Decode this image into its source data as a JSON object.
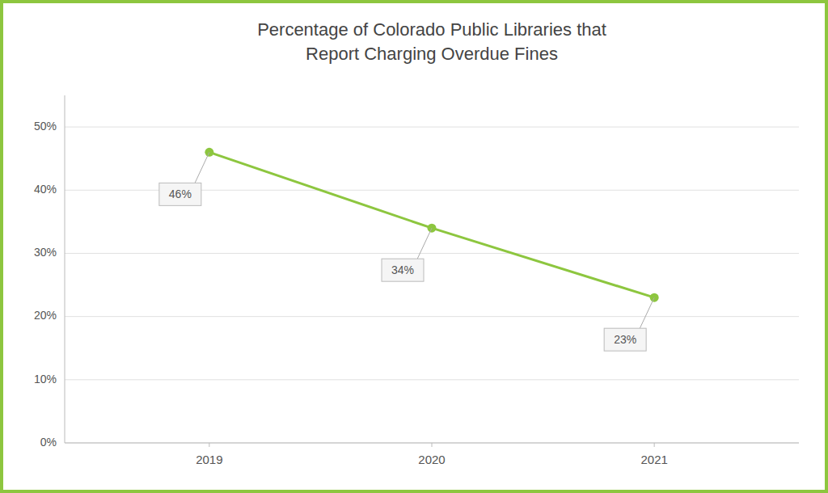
{
  "chart_data": {
    "type": "line",
    "title": "Percentage of Colorado Public Libraries that\nReport Charging Overdue Fines",
    "x": [
      2019,
      2020,
      2021
    ],
    "values": [
      46,
      34,
      23
    ],
    "value_labels": [
      "46%",
      "34%",
      "23%"
    ],
    "data_labels": true,
    "color": "#8dc63f",
    "marker": "circle",
    "xlim": [
      2018.35,
      2021.65
    ],
    "xticks": [
      2019,
      2020,
      2021
    ],
    "ylim": [
      0,
      55
    ],
    "yticks": [
      {
        "value": 0,
        "label": "0%"
      },
      {
        "value": 10,
        "label": "10%"
      },
      {
        "value": 20,
        "label": "20%"
      },
      {
        "value": 30,
        "label": "30%"
      },
      {
        "value": 40,
        "label": "40%"
      },
      {
        "value": 50,
        "label": "50%"
      }
    ],
    "grid": true
  }
}
